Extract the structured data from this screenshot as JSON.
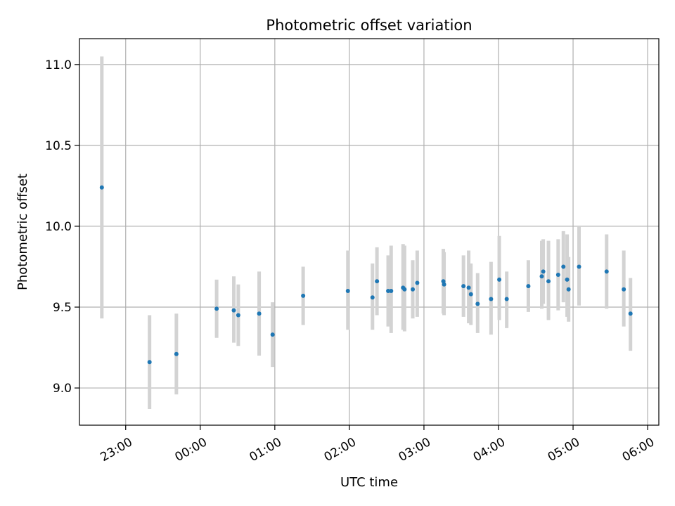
{
  "chart_data": {
    "type": "scatter",
    "title": "Photometric offset variation",
    "xlabel": "UTC time",
    "ylabel": "Photometric offset",
    "grid": true,
    "xticks": [
      "23:00",
      "00:00",
      "01:00",
      "02:00",
      "03:00",
      "04:00",
      "05:00",
      "06:00"
    ],
    "yticks": [
      "9.0",
      "9.5",
      "10.0",
      "10.5",
      "11.0"
    ],
    "xlim_hours": [
      22.38,
      30.15
    ],
    "ylim": [
      8.77,
      11.16
    ],
    "colors": {
      "point": "#1f77b4",
      "errorbar": "#d3d3d3",
      "grid": "#b0b0b0"
    },
    "points": [
      {
        "t": 22.68,
        "y": 10.24,
        "lo": 9.43,
        "hi": 11.05
      },
      {
        "t": 23.32,
        "y": 9.16,
        "lo": 8.87,
        "hi": 9.45
      },
      {
        "t": 23.68,
        "y": 9.21,
        "lo": 8.96,
        "hi": 9.46
      },
      {
        "t": 24.22,
        "y": 9.49,
        "lo": 9.31,
        "hi": 9.67
      },
      {
        "t": 24.45,
        "y": 9.48,
        "lo": 9.28,
        "hi": 9.69
      },
      {
        "t": 24.51,
        "y": 9.45,
        "lo": 9.26,
        "hi": 9.64
      },
      {
        "t": 24.79,
        "y": 9.46,
        "lo": 9.2,
        "hi": 9.72
      },
      {
        "t": 24.97,
        "y": 9.33,
        "lo": 9.13,
        "hi": 9.53
      },
      {
        "t": 25.38,
        "y": 9.57,
        "lo": 9.39,
        "hi": 9.75
      },
      {
        "t": 25.98,
        "y": 9.6,
        "lo": 9.36,
        "hi": 9.85
      },
      {
        "t": 26.31,
        "y": 9.56,
        "lo": 9.36,
        "hi": 9.77
      },
      {
        "t": 26.37,
        "y": 9.66,
        "lo": 9.45,
        "hi": 9.87
      },
      {
        "t": 26.52,
        "y": 9.6,
        "lo": 9.38,
        "hi": 9.82
      },
      {
        "t": 26.56,
        "y": 9.6,
        "lo": 9.34,
        "hi": 9.88
      },
      {
        "t": 26.72,
        "y": 9.62,
        "lo": 9.36,
        "hi": 9.89
      },
      {
        "t": 26.74,
        "y": 9.61,
        "lo": 9.35,
        "hi": 9.88
      },
      {
        "t": 26.85,
        "y": 9.61,
        "lo": 9.43,
        "hi": 9.79
      },
      {
        "t": 26.91,
        "y": 9.65,
        "lo": 9.44,
        "hi": 9.85
      },
      {
        "t": 27.26,
        "y": 9.66,
        "lo": 9.46,
        "hi": 9.86
      },
      {
        "t": 27.27,
        "y": 9.64,
        "lo": 9.45,
        "hi": 9.84
      },
      {
        "t": 27.53,
        "y": 9.63,
        "lo": 9.44,
        "hi": 9.82
      },
      {
        "t": 27.6,
        "y": 9.62,
        "lo": 9.4,
        "hi": 9.85
      },
      {
        "t": 27.63,
        "y": 9.58,
        "lo": 9.39,
        "hi": 9.77
      },
      {
        "t": 27.72,
        "y": 9.52,
        "lo": 9.34,
        "hi": 9.71
      },
      {
        "t": 27.9,
        "y": 9.55,
        "lo": 9.33,
        "hi": 9.78
      },
      {
        "t": 28.01,
        "y": 9.67,
        "lo": 9.42,
        "hi": 9.94
      },
      {
        "t": 28.11,
        "y": 9.55,
        "lo": 9.37,
        "hi": 9.72
      },
      {
        "t": 28.4,
        "y": 9.63,
        "lo": 9.47,
        "hi": 9.79
      },
      {
        "t": 28.58,
        "y": 9.69,
        "lo": 9.49,
        "hi": 9.91
      },
      {
        "t": 28.6,
        "y": 9.72,
        "lo": 9.52,
        "hi": 9.92
      },
      {
        "t": 28.67,
        "y": 9.66,
        "lo": 9.42,
        "hi": 9.91
      },
      {
        "t": 28.8,
        "y": 9.7,
        "lo": 9.48,
        "hi": 9.92
      },
      {
        "t": 28.87,
        "y": 9.75,
        "lo": 9.53,
        "hi": 9.97
      },
      {
        "t": 28.92,
        "y": 9.67,
        "lo": 9.44,
        "hi": 9.95
      },
      {
        "t": 28.94,
        "y": 9.61,
        "lo": 9.41,
        "hi": 9.81
      },
      {
        "t": 29.08,
        "y": 9.75,
        "lo": 9.51,
        "hi": 10.0
      },
      {
        "t": 29.45,
        "y": 9.72,
        "lo": 9.49,
        "hi": 9.95
      },
      {
        "t": 29.68,
        "y": 9.61,
        "lo": 9.38,
        "hi": 9.85
      },
      {
        "t": 29.77,
        "y": 9.46,
        "lo": 9.23,
        "hi": 9.68
      }
    ]
  }
}
